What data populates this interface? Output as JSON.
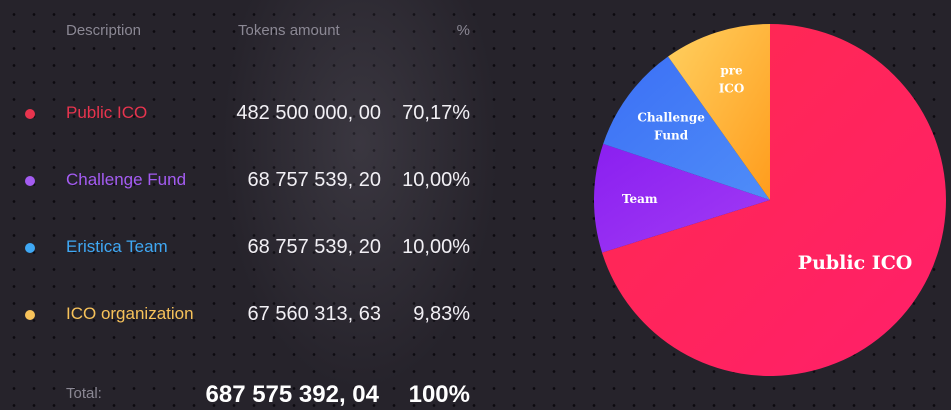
{
  "table": {
    "headers": {
      "description": "Description",
      "tokens": "Tokens amount",
      "percent": "%"
    },
    "rows": [
      {
        "label": "Public ICO",
        "amount": "482 500 000, 00",
        "percent": "70,17%",
        "color": "#e8344e"
      },
      {
        "label": "Challenge Fund",
        "amount": "68 757 539, 20",
        "percent": "10,00%",
        "color": "#a45cf2"
      },
      {
        "label": "Eristica Team",
        "amount": "68 757 539, 20",
        "percent": "10,00%",
        "color": "#3fa8f4"
      },
      {
        "label": "ICO organization",
        "amount": "67 560 313, 63",
        "percent": "9,83%",
        "color": "#f7c25a"
      }
    ],
    "total": {
      "label": "Total:",
      "amount": "687 575 392, 04",
      "percent": "100%"
    }
  },
  "chart_data": {
    "type": "pie",
    "slices": [
      {
        "label_lines": [
          "Public ICO"
        ],
        "value": 70.17,
        "colors": [
          "#ff2a4e",
          "#ff1f6a"
        ]
      },
      {
        "label_lines": [
          "Team"
        ],
        "value": 10.0,
        "colors": [
          "#8a1ff0",
          "#a23cf5"
        ]
      },
      {
        "label_lines": [
          "Challenge",
          "Fund"
        ],
        "value": 10.0,
        "colors": [
          "#3b6ff5",
          "#4f8df8"
        ]
      },
      {
        "label_lines": [
          "pre",
          "ICO"
        ],
        "value": 9.83,
        "colors": [
          "#ffd060",
          "#ff9c1c"
        ]
      }
    ]
  }
}
